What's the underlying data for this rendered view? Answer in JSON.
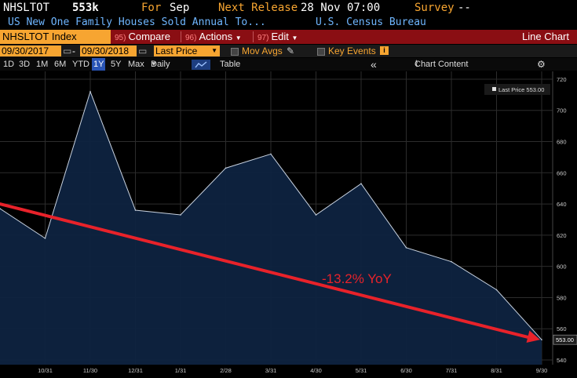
{
  "header": {
    "ticker": "NHSLTOT",
    "value": "553k",
    "for_label": "For",
    "for_value": "Sep",
    "next_release_label": "Next Release",
    "next_release_value": "28 Nov 07:00",
    "survey_label": "Survey",
    "survey_value": "--",
    "description": "US New One Family Houses Sold Annual To...",
    "source": "U.S. Census Bureau"
  },
  "toolbar": {
    "security": "NHSLTOT Index",
    "compare_num": "95)",
    "compare": "Compare",
    "actions_num": "96)",
    "actions": "Actions",
    "edit_num": "97)",
    "edit": "Edit",
    "chart_type": "Line Chart"
  },
  "date_row": {
    "start": "09/30/2017",
    "dash": "-",
    "end": "09/30/2018",
    "field": "Last Price",
    "mov_avgs": "Mov Avgs",
    "key_events": "Key Events",
    "key_events_icon": "i"
  },
  "range_row": {
    "periods": [
      "1D",
      "3D",
      "1M",
      "6M",
      "YTD",
      "1Y",
      "5Y",
      "Max"
    ],
    "selected": "1Y",
    "frequency": "Daily",
    "table": "Table",
    "collapse": "«",
    "chart_content": "Chart Content",
    "gear": "⚙"
  },
  "chart_data": {
    "type": "area",
    "legend": "Last Price 553.00",
    "legend_position": "top-right",
    "last_value_label": "553.00",
    "x": [
      "9/30",
      "10/31",
      "11/30",
      "12/31",
      "1/31",
      "2/28",
      "3/31",
      "4/30",
      "5/31",
      "6/30",
      "7/31",
      "8/31",
      "9/30"
    ],
    "x_tick_labels": [
      "10/31",
      "11/30",
      "12/31",
      "1/31",
      "2/28",
      "3/31",
      "4/30",
      "5/31",
      "6/30",
      "7/31",
      "8/31",
      "9/30"
    ],
    "values": [
      637,
      618,
      712,
      636,
      633,
      663,
      672,
      633,
      653,
      612,
      603,
      585,
      553
    ],
    "y_ticks": [
      540,
      560,
      580,
      600,
      620,
      640,
      660,
      680,
      700,
      720
    ],
    "ylim": [
      537,
      725
    ],
    "grid": true,
    "annotation": {
      "text": "-13.2% YoY",
      "color": "#e8222a",
      "trend_start_value": 640,
      "trend_end_value": 553
    },
    "colors": {
      "line": "#c8d2e0",
      "fill": "#0e2340",
      "grid": "#2c2c2c",
      "axis_text": "#c8c8c8"
    }
  }
}
